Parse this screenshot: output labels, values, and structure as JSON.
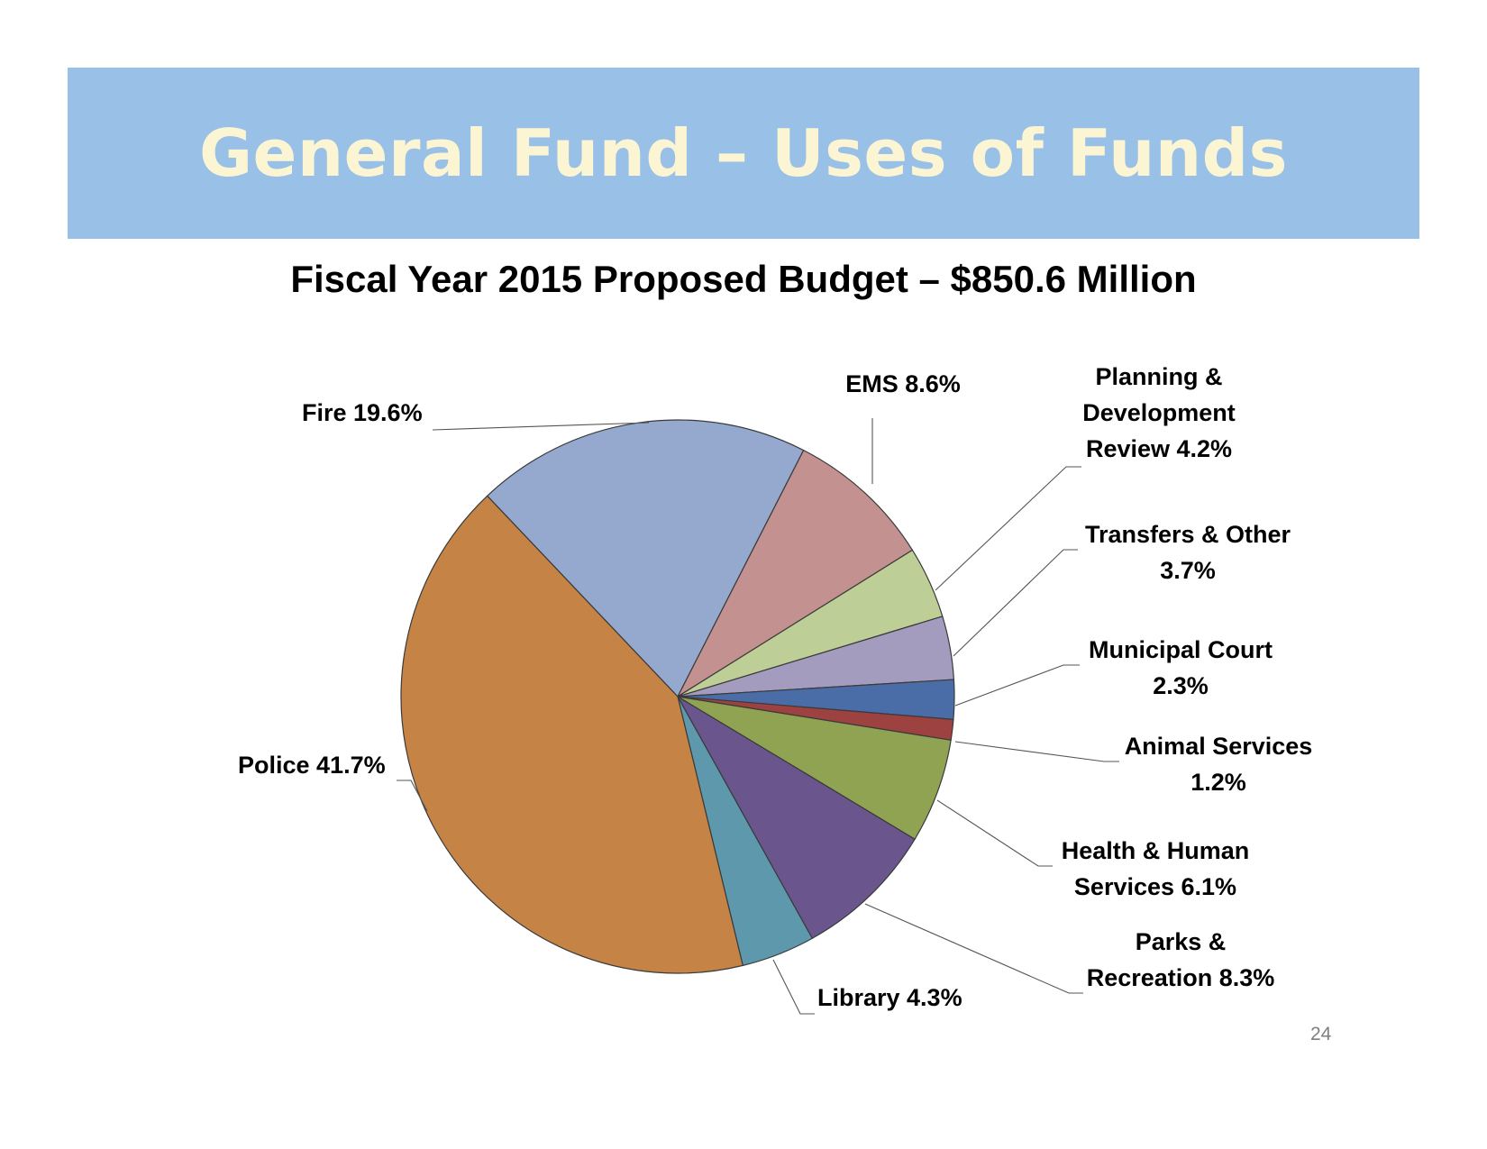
{
  "slide": {
    "title": "General Fund – Uses of Funds",
    "subtitle": "Fiscal Year 2015 Proposed Budget – $850.6 Million",
    "page_number": "24",
    "banner_color": "#99c0e6",
    "title_color": "#fbf5d3"
  },
  "chart_data": {
    "type": "pie",
    "title": "Fiscal Year 2015 Proposed Budget – $850.6 Million",
    "unit": "%",
    "slices": [
      {
        "name": "Fire",
        "value": 19.6,
        "color": "#95a9ce",
        "label_lines": [
          "Fire 19.6%"
        ]
      },
      {
        "name": "EMS",
        "value": 8.6,
        "color": "#c29190",
        "label_lines": [
          "EMS 8.6%"
        ]
      },
      {
        "name": "Planning & Development Review",
        "value": 4.2,
        "color": "#bdcf96",
        "label_lines": [
          "Planning &",
          "Development",
          "Review 4.2%"
        ]
      },
      {
        "name": "Transfers & Other",
        "value": 3.7,
        "color": "#a49cbf",
        "label_lines": [
          "Transfers & Other",
          "3.7%"
        ]
      },
      {
        "name": "Municipal Court",
        "value": 2.3,
        "color": "#4a6da8",
        "label_lines": [
          "Municipal Court",
          "2.3%"
        ]
      },
      {
        "name": "Animal Services",
        "value": 1.2,
        "color": "#9e4141",
        "label_lines": [
          "Animal Services",
          "1.2%"
        ]
      },
      {
        "name": "Health & Human Services",
        "value": 6.1,
        "color": "#8fa352",
        "label_lines": [
          "Health & Human",
          "Services 6.1%"
        ]
      },
      {
        "name": "Parks & Recreation",
        "value": 8.3,
        "color": "#6a558d",
        "label_lines": [
          "Parks &",
          "Recreation 8.3%"
        ]
      },
      {
        "name": "Library",
        "value": 4.3,
        "color": "#5d98ad",
        "label_lines": [
          "Library 4.3%"
        ]
      },
      {
        "name": "Police",
        "value": 41.7,
        "color": "#c58446",
        "label_lines": [
          "Police 41.7%"
        ]
      }
    ]
  }
}
